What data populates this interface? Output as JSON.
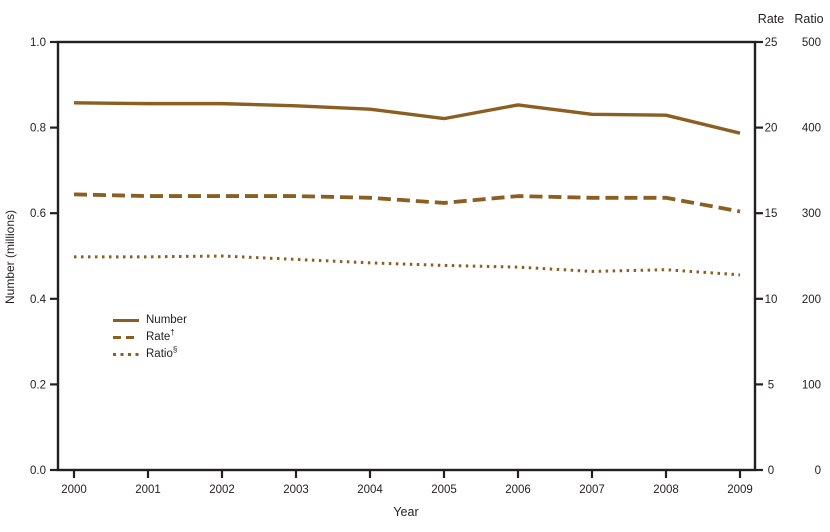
{
  "figure": {
    "y_axis_title": "Number (millions)",
    "x_axis_title": "Year",
    "axis_color": "#231F20",
    "series_color": "#8B5E22"
  },
  "chart_data": {
    "type": "line",
    "title": "",
    "xlabel": "Year",
    "ylabel": "Number (millions)",
    "x": [
      2000,
      2001,
      2002,
      2003,
      2004,
      2005,
      2006,
      2007,
      2008,
      2009
    ],
    "x_tick_labels": [
      "2000",
      "2001",
      "2002",
      "2003",
      "2004",
      "2005",
      "2006",
      "2007",
      "2008",
      "2009"
    ],
    "grid": false,
    "legend_position": "inside-left-middle",
    "left_axis": {
      "label": "Number (millions)",
      "range": [
        0,
        1.0
      ],
      "ticks": [
        "1.0",
        "0.8",
        "0.6",
        "0.4",
        "0.2",
        "0.0"
      ]
    },
    "right_axis_rate": {
      "label": "Rate",
      "range": [
        0,
        25
      ],
      "ticks": [
        "25",
        "20",
        "15",
        "10",
        "5",
        "0"
      ]
    },
    "right_axis_ratio": {
      "label": "Ratio",
      "range": [
        0,
        500
      ],
      "ticks": [
        "500",
        "400",
        "300",
        "200",
        "100",
        "0"
      ]
    },
    "series": [
      {
        "name": "Number",
        "sup": "",
        "axis": "left",
        "style": "solid",
        "values": [
          0.858,
          0.856,
          0.856,
          0.851,
          0.843,
          0.821,
          0.853,
          0.831,
          0.829,
          0.787
        ]
      },
      {
        "name": "Rate",
        "sup": "†",
        "axis": "rate",
        "style": "dashed",
        "values": [
          16.1,
          16.0,
          16.0,
          16.0,
          15.9,
          15.6,
          16.0,
          15.9,
          15.9,
          15.1
        ]
      },
      {
        "name": "Ratio",
        "sup": "§",
        "axis": "ratio",
        "style": "dotted",
        "values": [
          249,
          249,
          250,
          246,
          242,
          239,
          237,
          232,
          234,
          228
        ]
      }
    ]
  }
}
